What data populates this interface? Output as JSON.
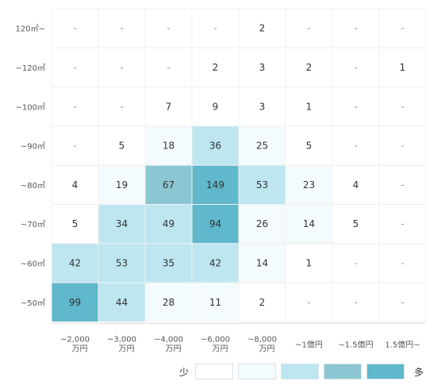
{
  "chart_data": {
    "type": "heatmap",
    "title": "",
    "xlabel": "",
    "ylabel": "",
    "x_categories": [
      [
        "~2,000",
        "万円"
      ],
      [
        "~3,000",
        "万円"
      ],
      [
        "~4,000",
        "万円"
      ],
      [
        "~6,000",
        "万円"
      ],
      [
        "~8,000",
        "万円"
      ],
      [
        "~1億円"
      ],
      [
        "~1.5億円"
      ],
      [
        "1.5億円~"
      ]
    ],
    "y_categories": [
      "120㎡~",
      "~120㎡",
      "~100㎡",
      "~90㎡",
      "~80㎡",
      "~70㎡",
      "~60㎡",
      "~50㎡"
    ],
    "values": [
      [
        null,
        null,
        null,
        null,
        2,
        null,
        null,
        null
      ],
      [
        null,
        null,
        null,
        2,
        3,
        2,
        null,
        1
      ],
      [
        null,
        null,
        7,
        9,
        3,
        1,
        null,
        null
      ],
      [
        null,
        5,
        18,
        36,
        25,
        5,
        null,
        null
      ],
      [
        4,
        19,
        67,
        149,
        53,
        23,
        4,
        null
      ],
      [
        5,
        34,
        49,
        94,
        26,
        14,
        5,
        null
      ],
      [
        42,
        53,
        35,
        42,
        14,
        1,
        null,
        null
      ],
      [
        99,
        44,
        28,
        11,
        2,
        null,
        null,
        null
      ]
    ],
    "empty_marker": "-",
    "thresholds": [
      10,
      30,
      60,
      90
    ],
    "colors": [
      "#ffffff",
      "#f3fbfe",
      "#bde6f0",
      "#8dc6d3",
      "#5fb8cb"
    ],
    "legend": {
      "position": "bottom-right",
      "low_label": "少",
      "high_label": "多"
    },
    "grid": true
  }
}
